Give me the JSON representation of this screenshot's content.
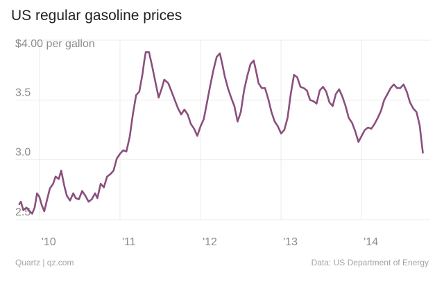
{
  "colors": {
    "series": "#8a4f7d",
    "grid": "#ebebeb"
  },
  "footer": {
    "source_left": "Quartz | qz.com",
    "source_right": "Data: US Department of Energy"
  },
  "chart_data": {
    "type": "line",
    "title": "US regular gasoline prices",
    "ylabel": "$4.00 per gallon",
    "xlabel": "",
    "ylim": [
      2.5,
      4.0
    ],
    "xlim": [
      2009.7,
      2014.85
    ],
    "y_ticks": [
      2.5,
      3.0,
      3.5
    ],
    "y_tick_labels": [
      "2.5",
      "3.0",
      "3.5"
    ],
    "x_ticks": [
      2010,
      2011,
      2012,
      2013,
      2014
    ],
    "x_tick_labels": [
      "'10",
      "'11",
      "'12",
      "'13",
      "'14"
    ],
    "grid": true,
    "series": [
      {
        "name": "US regular gasoline price ($ per gallon)",
        "x": [
          2009.75,
          2009.77,
          2009.8,
          2009.84,
          2009.88,
          2009.91,
          2009.94,
          2009.97,
          2010.0,
          2010.03,
          2010.06,
          2010.1,
          2010.13,
          2010.17,
          2010.2,
          2010.24,
          2010.27,
          2010.31,
          2010.34,
          2010.38,
          2010.42,
          2010.45,
          2010.49,
          2010.53,
          2010.57,
          2010.61,
          2010.65,
          2010.69,
          2010.72,
          2010.76,
          2010.8,
          2010.84,
          2010.88,
          2010.92,
          2010.96,
          2011.0,
          2011.04,
          2011.08,
          2011.12,
          2011.16,
          2011.2,
          2011.24,
          2011.28,
          2011.3,
          2011.32,
          2011.36,
          2011.4,
          2011.44,
          2011.48,
          2011.52,
          2011.55,
          2011.6,
          2011.64,
          2011.68,
          2011.72,
          2011.76,
          2011.8,
          2011.84,
          2011.88,
          2011.92,
          2011.96,
          2012.0,
          2012.04,
          2012.08,
          2012.12,
          2012.16,
          2012.2,
          2012.24,
          2012.27,
          2012.3,
          2012.34,
          2012.38,
          2012.42,
          2012.46,
          2012.5,
          2012.54,
          2012.58,
          2012.62,
          2012.66,
          2012.69,
          2012.72,
          2012.76,
          2012.8,
          2012.84,
          2012.88,
          2012.92,
          2012.96,
          2013.0,
          2013.04,
          2013.08,
          2013.12,
          2013.16,
          2013.2,
          2013.24,
          2013.28,
          2013.32,
          2013.36,
          2013.4,
          2013.44,
          2013.48,
          2013.52,
          2013.56,
          2013.6,
          2013.64,
          2013.68,
          2013.72,
          2013.76,
          2013.8,
          2013.84,
          2013.88,
          2013.92,
          2013.96,
          2014.0,
          2014.04,
          2014.08,
          2014.12,
          2014.16,
          2014.2,
          2014.24,
          2014.28,
          2014.32,
          2014.36,
          2014.4,
          2014.44,
          2014.48,
          2014.52,
          2014.56,
          2014.6,
          2014.64,
          2014.68,
          2014.72,
          2014.76
        ],
        "values": [
          2.63,
          2.65,
          2.58,
          2.6,
          2.57,
          2.55,
          2.6,
          2.72,
          2.69,
          2.62,
          2.57,
          2.68,
          2.76,
          2.8,
          2.86,
          2.84,
          2.91,
          2.78,
          2.7,
          2.66,
          2.72,
          2.68,
          2.67,
          2.74,
          2.7,
          2.65,
          2.67,
          2.72,
          2.68,
          2.8,
          2.77,
          2.86,
          2.88,
          2.91,
          3.01,
          3.05,
          3.08,
          3.07,
          3.19,
          3.38,
          3.54,
          3.57,
          3.72,
          3.82,
          3.9,
          3.9,
          3.78,
          3.65,
          3.52,
          3.6,
          3.67,
          3.64,
          3.57,
          3.5,
          3.43,
          3.38,
          3.42,
          3.38,
          3.3,
          3.26,
          3.2,
          3.28,
          3.34,
          3.48,
          3.62,
          3.75,
          3.86,
          3.89,
          3.8,
          3.7,
          3.6,
          3.52,
          3.45,
          3.32,
          3.4,
          3.58,
          3.7,
          3.8,
          3.83,
          3.74,
          3.64,
          3.6,
          3.6,
          3.51,
          3.4,
          3.32,
          3.28,
          3.22,
          3.25,
          3.35,
          3.55,
          3.71,
          3.69,
          3.61,
          3.6,
          3.58,
          3.5,
          3.49,
          3.47,
          3.58,
          3.61,
          3.57,
          3.48,
          3.45,
          3.55,
          3.59,
          3.53,
          3.45,
          3.35,
          3.31,
          3.24,
          3.15,
          3.2,
          3.25,
          3.27,
          3.26,
          3.3,
          3.35,
          3.41,
          3.5,
          3.55,
          3.6,
          3.63,
          3.6,
          3.6,
          3.63,
          3.57,
          3.48,
          3.43,
          3.4,
          3.29,
          3.06
        ]
      }
    ]
  }
}
